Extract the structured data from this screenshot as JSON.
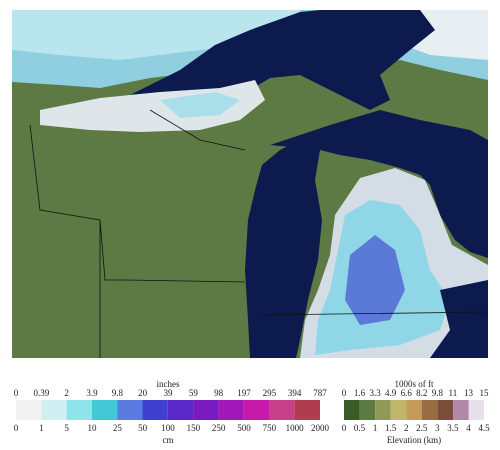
{
  "snow_legend": {
    "title": "inches",
    "top_labels": [
      "0",
      "0.39",
      "2",
      "3.9",
      "9.8",
      "20",
      "39",
      "59",
      "98",
      "197",
      "295",
      "394",
      "787"
    ],
    "bottom_labels": [
      "0",
      "1",
      "5",
      "10",
      "25",
      "50",
      "100",
      "150",
      "250",
      "500",
      "750",
      "1000",
      "2000"
    ],
    "unit": "cm"
  },
  "elevation_legend": {
    "title": "1000s of ft",
    "top_labels": [
      "0",
      "1.6",
      "3.3",
      "4.9",
      "6.6",
      "8.2",
      "9.8",
      "11",
      "13",
      "15"
    ],
    "bottom_labels": [
      "0",
      "0.5",
      "1",
      "1.5",
      "2",
      "2.5",
      "3",
      "3.5",
      "4",
      "4.5"
    ],
    "unit": "Elevation (km)"
  }
}
